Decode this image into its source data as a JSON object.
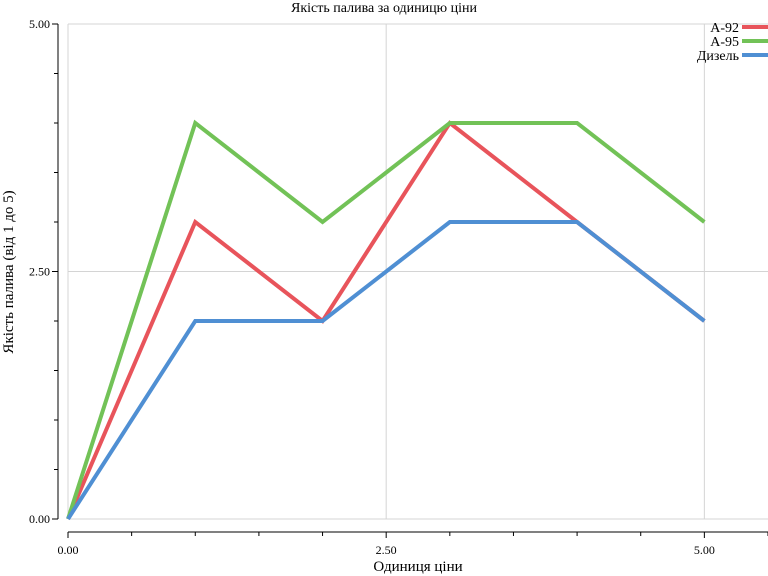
{
  "chart_data": {
    "type": "line",
    "title": "Якість палива за одиницю ціни",
    "xlabel": "Одиниця ціни",
    "ylabel": "Якість палива (від 1 до 5)",
    "xlim": [
      0,
      5.5
    ],
    "ylim": [
      0,
      5
    ],
    "x_ticks": [
      "0.00",
      "2.50",
      "5.00"
    ],
    "y_ticks": [
      "0.00",
      "2.50",
      "5.00"
    ],
    "grid": true,
    "legend_position": "top-right",
    "x": [
      0,
      1,
      2,
      3,
      4,
      5
    ],
    "series": [
      {
        "name": "А-92",
        "color": "#e8545b",
        "values": [
          0,
          3,
          2,
          4,
          3,
          2
        ]
      },
      {
        "name": "А-95",
        "color": "#72c257",
        "values": [
          0,
          4,
          3,
          4,
          4,
          3
        ]
      },
      {
        "name": "Дизель",
        "color": "#4f8fd3",
        "values": [
          0,
          2,
          2,
          3,
          3,
          2
        ]
      }
    ]
  }
}
